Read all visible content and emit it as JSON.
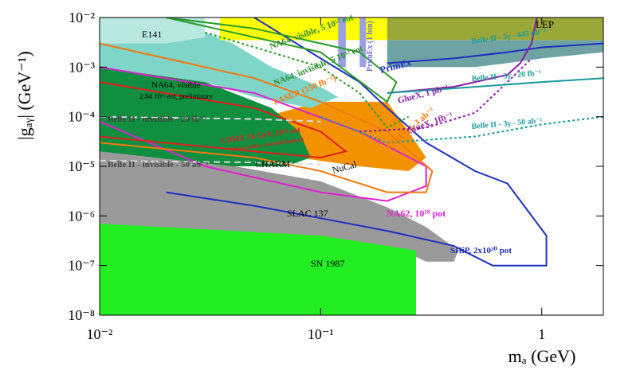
{
  "chart_data": {
    "type": "exclusion",
    "x_label": "mₐ (GeV)",
    "y_label": "|gₐᵧ| (GeV⁻¹)",
    "xscale": "log",
    "yscale": "log",
    "xlim": [
      0.01,
      1.9
    ],
    "ylim": [
      1e-08,
      0.01
    ],
    "xticks": [
      {
        "value": 0.01,
        "label": "10⁻²"
      },
      {
        "value": 0.1,
        "label": "10⁻¹"
      },
      1
    ],
    "yticks": [
      {
        "value": 1e-08,
        "label": "10⁻⁸"
      },
      {
        "value": 1e-07,
        "label": "10⁻⁷"
      },
      {
        "value": 1e-06,
        "label": "10⁻⁶"
      },
      {
        "value": 1e-05,
        "label": "10⁻⁵"
      },
      {
        "value": 0.0001,
        "label": "10⁻⁴"
      },
      {
        "value": 0.001,
        "label": "10⁻³"
      },
      {
        "value": 0.01,
        "label": "10⁻²"
      }
    ],
    "regions": [
      {
        "color": "#9a9a9a",
        "x": [
          0.01,
          0.1,
          0.2,
          0.3,
          0.42,
          0.4,
          0.3,
          0.27,
          0.27,
          0.01
        ],
        "y": [
          3e-05,
          5e-06,
          1.5e-06,
          6e-07,
          2e-07,
          1.2e-07,
          1.2e-07,
          1.5e-07,
          2e-07,
          7e-07
        ]
      },
      {
        "color": "#22ee22",
        "x": [
          0.01,
          0.1,
          0.2,
          0.27,
          0.27,
          0.01
        ],
        "y": [
          7e-07,
          4e-07,
          2.5e-07,
          2e-07,
          1e-08,
          1e-08
        ]
      },
      {
        "color": "#f39200",
        "x": [
          0.02,
          0.1,
          0.2,
          0.25,
          0.3,
          0.25,
          0.15,
          0.05
        ],
        "y": [
          3e-05,
          0.0002,
          0.0002,
          5e-05,
          1.5e-05,
          8e-06,
          1e-05,
          2e-05
        ]
      },
      {
        "color": "#0f8f3f",
        "x": [
          0.01,
          0.03,
          0.06,
          0.08,
          0.09,
          0.07,
          0.04,
          0.01
        ],
        "y": [
          0.001,
          0.0005,
          0.00015,
          5e-05,
          1.5e-05,
          1e-05,
          1e-05,
          2e-05
        ]
      },
      {
        "color": "#7fd6c8",
        "x": [
          0.01,
          0.02,
          0.04,
          0.06,
          0.1,
          0.12,
          0.09,
          0.05,
          0.03,
          0.01
        ],
        "y": [
          0.01,
          0.01,
          0.003,
          0.001,
          0.0004,
          0.00025,
          0.00015,
          0.00025,
          0.0005,
          0.001
        ]
      },
      {
        "color": "#b8e8e0",
        "x": [
          0.01,
          0.03,
          0.03,
          0.02,
          0.01
        ],
        "y": [
          0.01,
          0.01,
          0.004,
          0.003,
          0.003
        ]
      },
      {
        "color": "#ffff00",
        "x": [
          0.035,
          0.2,
          0.2,
          0.035
        ],
        "y": [
          0.01,
          0.01,
          0.0035,
          0.0035
        ]
      },
      {
        "color": "#9aa0e0",
        "x": [
          0.12,
          0.13,
          0.13,
          0.12
        ],
        "y": [
          0.01,
          0.01,
          0.001,
          0.001
        ]
      },
      {
        "color": "#9aa0e0",
        "x": [
          0.15,
          0.16,
          0.16,
          0.15
        ],
        "y": [
          0.01,
          0.01,
          0.001,
          0.001
        ]
      },
      {
        "color": "#6fa3a3",
        "x": [
          0.2,
          1.9,
          1.9,
          1,
          0.7,
          0.5,
          0.3,
          0.2
        ],
        "y": [
          0.0035,
          0.0035,
          0.002,
          0.0015,
          0.0012,
          0.001,
          0.001,
          0.001
        ]
      },
      {
        "color": "#9aa83a",
        "x": [
          0.2,
          1.9,
          1.9,
          0.2
        ],
        "y": [
          0.01,
          0.01,
          0.0035,
          0.0035
        ]
      }
    ],
    "curves": [
      {
        "color": "#1f2fc0",
        "dash": "solid",
        "x": [
          0.02,
          0.05,
          0.1,
          0.2,
          0.4,
          0.5,
          0.6,
          1.05,
          1.05,
          0.7,
          0.5,
          0.3,
          0.2,
          0.15,
          0.1,
          0.07,
          0.05
        ],
        "y": [
          3e-06,
          1.6e-06,
          9e-07,
          5e-07,
          2.5e-07,
          1.5e-07,
          1e-07,
          1e-07,
          4e-07,
          4.5e-06,
          8e-06,
          3e-05,
          0.00015,
          0.0005,
          0.0015,
          0.004,
          0.01
        ]
      },
      {
        "color": "#1f2fc0",
        "dash": "solid",
        "x": [
          0.2,
          0.4,
          0.7,
          1,
          1.9
        ],
        "y": [
          0.0012,
          0.0015,
          0.002,
          0.0025,
          0.003
        ]
      },
      {
        "color": "#e020d0",
        "dash": "solid",
        "x": [
          0.01,
          0.03,
          0.1,
          0.2,
          0.3,
          0.3,
          0.15,
          0.05,
          0.01
        ],
        "y": [
          8e-05,
          1e-05,
          3e-06,
          2e-06,
          4e-06,
          1e-05,
          5e-05,
          0.0003,
          0.001
        ]
      },
      {
        "color": "#f07a10",
        "dash": "solid",
        "x": [
          0.01,
          0.05,
          0.1,
          0.2,
          0.3,
          0.32,
          0.2,
          0.1,
          0.05,
          0.01
        ],
        "y": [
          3e-05,
          1.5e-05,
          8e-06,
          3e-06,
          3e-06,
          8e-06,
          5e-05,
          0.0002,
          0.0006,
          0.003
        ]
      },
      {
        "color": "#e02020",
        "dash": "solid",
        "x": [
          0.01,
          0.05,
          0.1,
          0.13,
          0.1,
          0.05,
          0.01
        ],
        "y": [
          0.0005,
          0.00015,
          5e-05,
          2e-05,
          1.5e-05,
          2e-05,
          4e-05
        ]
      },
      {
        "color": "#2a9a2a",
        "dash": "dot",
        "x": [
          0.03,
          0.1,
          0.15,
          0.2,
          0.25
        ],
        "y": [
          0.005,
          0.001,
          0.0003,
          6e-05,
          0.0001
        ]
      },
      {
        "color": "#2a9a2a",
        "dash": "solid",
        "x": [
          0.02,
          0.1,
          0.2,
          0.22,
          0.15,
          0.05,
          0.02
        ],
        "y": [
          0.01,
          0.002,
          0.0002,
          0.0005,
          0.002,
          0.006,
          0.01
        ]
      },
      {
        "color": "#8a1aa0",
        "dash": "solid",
        "x": [
          0.2,
          0.4,
          0.7,
          0.8,
          0.9,
          0.95
        ],
        "y": [
          0.0003,
          0.0004,
          0.0007,
          0.0012,
          0.003,
          0.01
        ]
      },
      {
        "color": "#8a1aa0",
        "dash": "dot",
        "x": [
          0.15,
          0.3,
          0.5,
          0.7,
          0.9
        ],
        "y": [
          5e-05,
          6e-05,
          0.00012,
          0.0005,
          0.0015
        ]
      },
      {
        "color": "#1a9a9a",
        "dash": "solid",
        "x": [
          0.2,
          0.5,
          1,
          1.9
        ],
        "y": [
          0.0003,
          0.0004,
          0.0005,
          0.0006
        ]
      },
      {
        "color": "#1a9a9a",
        "dash": "dot",
        "x": [
          0.1,
          0.2,
          0.5,
          1,
          1.9
        ],
        "y": [
          0.0001,
          3e-05,
          4e-05,
          7e-05,
          0.0001
        ]
      },
      {
        "color": "#d8d8d8",
        "dash": "dash",
        "x": [
          0.01,
          0.05,
          0.1
        ],
        "y": [
          0.0001,
          9e-05,
          8e-05
        ]
      },
      {
        "color": "#d8d8d8",
        "dash": "dash",
        "x": [
          0.01,
          0.05,
          0.1
        ],
        "y": [
          1.3e-05,
          1.2e-05,
          1.1e-05
        ]
      }
    ],
    "annotations": [
      {
        "text": "E141",
        "color": "#000000"
      },
      {
        "text": "LEP",
        "color": "#000000"
      },
      {
        "text": "PrimEx (1 bin)",
        "color": "#7070e0"
      },
      {
        "text": "NA64, visible, 5 10¹² eot",
        "color": "#2a8a2a"
      },
      {
        "text": "NA64, invisible, 5 10¹² eot",
        "color": "#2a8a2a"
      },
      {
        "text": "FASER (150 fb⁻¹)",
        "color": "#f07a10"
      },
      {
        "text": "PrimEx",
        "color": "#1f2fc0"
      },
      {
        "text": "Belle II - 3γ - 445 pb⁻¹",
        "color": "#1a9a9a"
      },
      {
        "text": "Belle II - 3γ - 20 fb⁻¹",
        "color": "#1a9a9a"
      },
      {
        "text": "NA64, visible",
        "color": "#000000"
      },
      {
        "text": "2.84 10¹¹ eot, preliminary",
        "color": "#000000"
      },
      {
        "text": "GlueX, 1 pb⁻¹",
        "color": "#8a1aa0"
      },
      {
        "text": "Belle II - invisible - 20 fb⁻¹",
        "color": "#444444"
      },
      {
        "text": "GlueX, 1fb⁻¹",
        "color": "#8a1aa0"
      },
      {
        "text": "Belle II - 3γ - 50 ab⁻¹",
        "color": "#1a9a9a"
      },
      {
        "text": "LDMX 16 GeV, 10¹⁶ eot",
        "color": "#e02020"
      },
      {
        "text": "(short visible, invisible limited)",
        "color": "#e02020"
      },
      {
        "text": "FASER2, 3 ab⁻¹",
        "color": "#f07a10"
      },
      {
        "text": "Belle II - invisible - 50 ab⁻¹",
        "color": "#444444"
      },
      {
        "text": "CHARM",
        "color": "#000000"
      },
      {
        "text": "NuCal",
        "color": "#000000"
      },
      {
        "text": "SLAC 137",
        "color": "#000000"
      },
      {
        "text": "NA62, 10¹⁸ pot",
        "color": "#e020d0"
      },
      {
        "text": "SHiP, 2x10²⁰ pot",
        "color": "#1f2fc0"
      },
      {
        "text": "SN 1987",
        "color": "#000000"
      }
    ]
  }
}
